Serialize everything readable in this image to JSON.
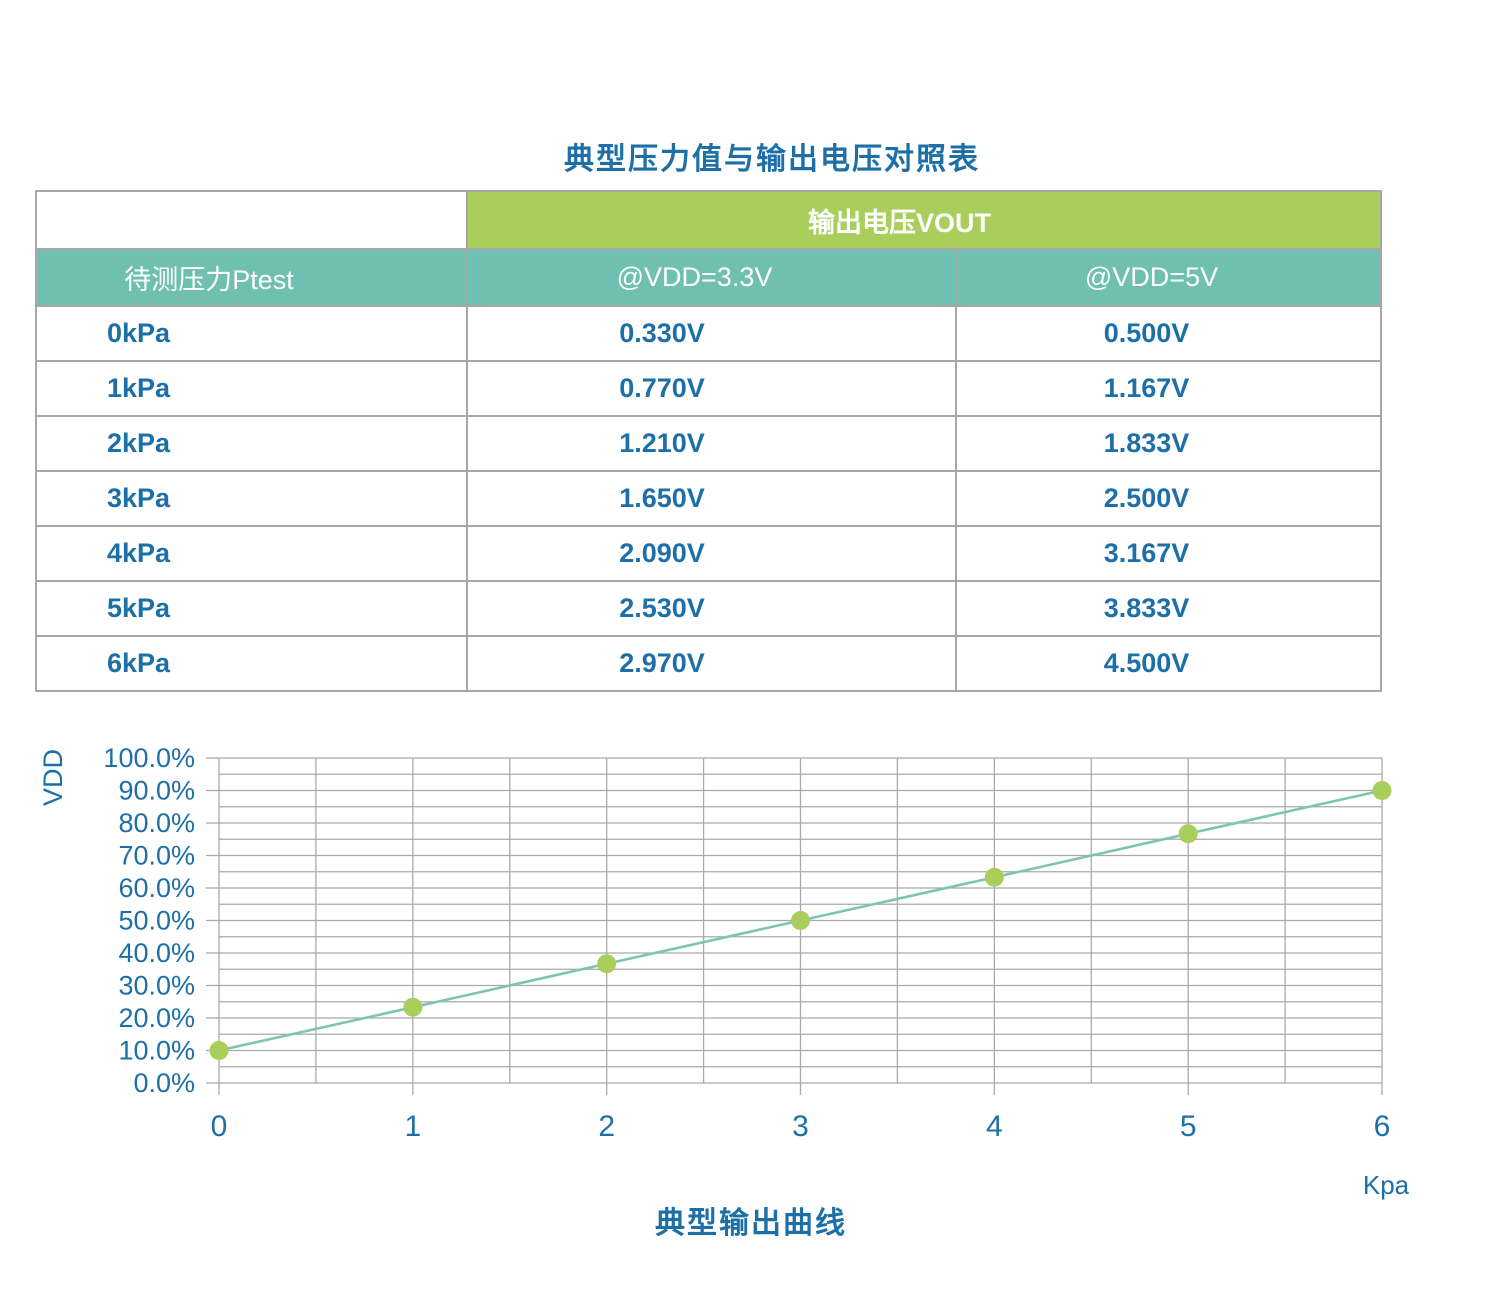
{
  "title": "典型压力值与输出电压对照表",
  "table": {
    "vout_header": "输出电压VOUT",
    "col_headers": [
      "待测压力Ptest",
      "@VDD=3.3V",
      "@VDD=5V"
    ],
    "rows": [
      {
        "pressure": "0kPa",
        "v33": "0.330V",
        "v5": "0.500V"
      },
      {
        "pressure": "1kPa",
        "v33": "0.770V",
        "v5": "1.167V"
      },
      {
        "pressure": "2kPa",
        "v33": "1.210V",
        "v5": "1.833V"
      },
      {
        "pressure": "3kPa",
        "v33": "1.650V",
        "v5": "2.500V"
      },
      {
        "pressure": "4kPa",
        "v33": "2.090V",
        "v5": "3.167V"
      },
      {
        "pressure": "5kPa",
        "v33": "2.530V",
        "v5": "3.833V"
      },
      {
        "pressure": "6kPa",
        "v33": "2.970V",
        "v5": "4.500V"
      }
    ]
  },
  "chart_data": {
    "type": "line",
    "title": "典型输出曲线",
    "xlabel": "Kpa",
    "ylabel": "VDD",
    "x": [
      0,
      1,
      2,
      3,
      4,
      5,
      6
    ],
    "values": [
      10.0,
      23.3,
      36.7,
      50.0,
      63.3,
      76.7,
      90.0
    ],
    "x_tick_labels": [
      "0",
      "1",
      "2",
      "3",
      "4",
      "5",
      "6"
    ],
    "y_tick_labels": [
      "100.0%",
      "90.0%",
      "80.0%",
      "70.0%",
      "60.0%",
      "50.0%",
      "40.0%",
      "30.0%",
      "20.0%",
      "10.0%",
      "0.0%"
    ],
    "xlim": [
      0,
      6
    ],
    "ylim": [
      0,
      100
    ],
    "y_major_step": 10,
    "y_minor_step": 5,
    "x_minor_step": 0.5,
    "grid": true,
    "legend": "none",
    "colors": {
      "line": "#7ec5b1",
      "marker": "#a9ce5c",
      "grid": "#a9a9a9",
      "tick_text": "#1d6fa8"
    }
  },
  "colors": {
    "header_green": "#a9ce5c",
    "header_teal": "#6fc0b0",
    "text_blue": "#1d6fa8",
    "border_gray": "#a7a7a7",
    "background": "#ffffff"
  }
}
